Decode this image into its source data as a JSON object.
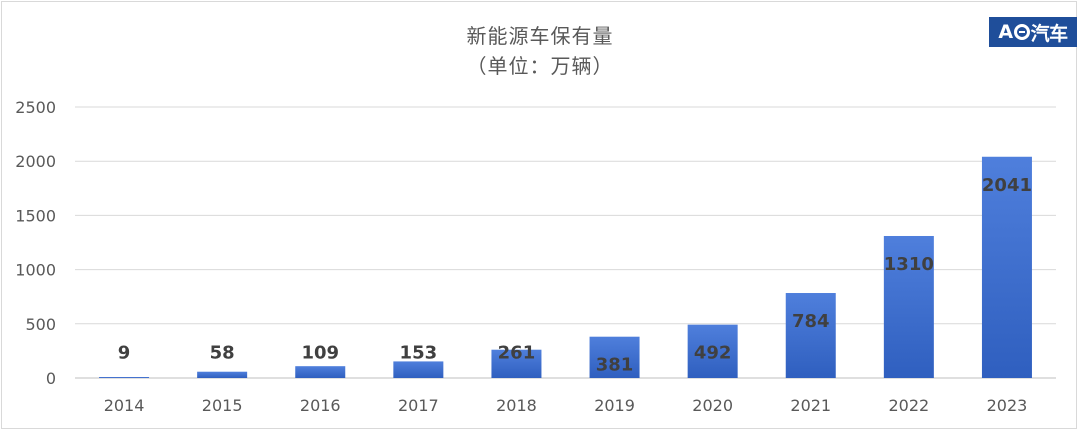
{
  "chart_data": {
    "type": "bar",
    "title": "新能源车保有量",
    "subtitle": "（单位：万辆）",
    "categories": [
      "2014",
      "2015",
      "2016",
      "2017",
      "2018",
      "2019",
      "2020",
      "2021",
      "2022",
      "2023"
    ],
    "values": [
      9,
      58,
      109,
      153,
      261,
      381,
      492,
      784,
      1310,
      2041
    ],
    "data_labels": [
      "9",
      "58",
      "109",
      "153",
      "261",
      "381",
      "492",
      "784",
      "1310",
      "2041"
    ],
    "ylim": [
      0,
      2500
    ],
    "yticks": [
      "0",
      "500",
      "1000",
      "1500",
      "2000",
      "2500"
    ],
    "grid": true,
    "bar_color_top": "#4f7fdc",
    "bar_color_bottom": "#2f5fbf"
  },
  "logo": {
    "left_text": "A",
    "right_text": "汽车"
  }
}
